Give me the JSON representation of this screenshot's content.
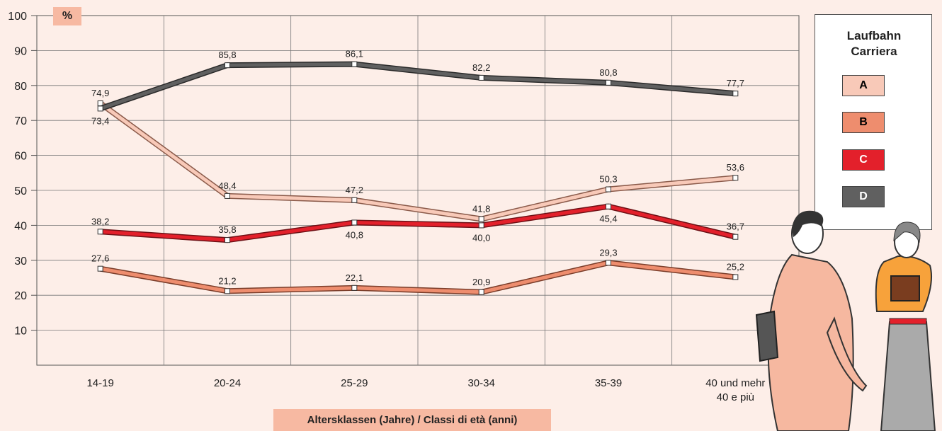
{
  "chart_data": {
    "type": "line",
    "unit_label": "%",
    "xlabel": "Altersklassen (Jahre) / Classi di età (anni)",
    "ylabel": "",
    "ylim": [
      0,
      100
    ],
    "yticks": [
      "100",
      "90",
      "80",
      "70",
      "60",
      "50",
      "40",
      "30",
      "20",
      "10"
    ],
    "categories": [
      "14-19",
      "20-24",
      "25-29",
      "30-34",
      "35-39",
      "40 und mehr"
    ],
    "category_second_line": [
      "",
      "",
      "",
      "",
      "",
      "40 e più"
    ],
    "series": [
      {
        "name": "A",
        "color": "#f8c9b8",
        "border": "#8a5a4a",
        "values": [
          74.9,
          48.4,
          47.2,
          41.8,
          50.3,
          53.6
        ],
        "labels": [
          "74,9",
          "48,4",
          "47,2",
          "41,8",
          "50,3",
          "53,6"
        ]
      },
      {
        "name": "B",
        "color": "#ee8d6e",
        "border": "#7a3d2a",
        "values": [
          27.6,
          21.2,
          22.1,
          20.9,
          29.3,
          25.2
        ],
        "labels": [
          "27,6",
          "21,2",
          "22,1",
          "20,9",
          "29,3",
          "25,2"
        ]
      },
      {
        "name": "C",
        "color": "#e3202b",
        "border": "#6d1015",
        "values": [
          38.2,
          35.8,
          40.8,
          40.0,
          45.4,
          36.7
        ],
        "labels": [
          "38,2",
          "35,8",
          "40,8",
          "40,0",
          "45,4",
          "36,7"
        ]
      },
      {
        "name": "D",
        "color": "#606060",
        "border": "#2a2a2a",
        "values": [
          73.4,
          85.8,
          86.1,
          82.2,
          80.8,
          77.7
        ],
        "labels": [
          "73,4",
          "85,8",
          "86,1",
          "82,2",
          "80,8",
          "77,7"
        ]
      }
    ],
    "legend": {
      "title_line1": "Laufbahn",
      "title_line2": "Carriera",
      "placement": "right",
      "items": [
        "A",
        "B",
        "C",
        "D"
      ]
    },
    "grid": true
  },
  "colors": {
    "background": "#fdeee8",
    "accent": "#f7b9a2"
  }
}
